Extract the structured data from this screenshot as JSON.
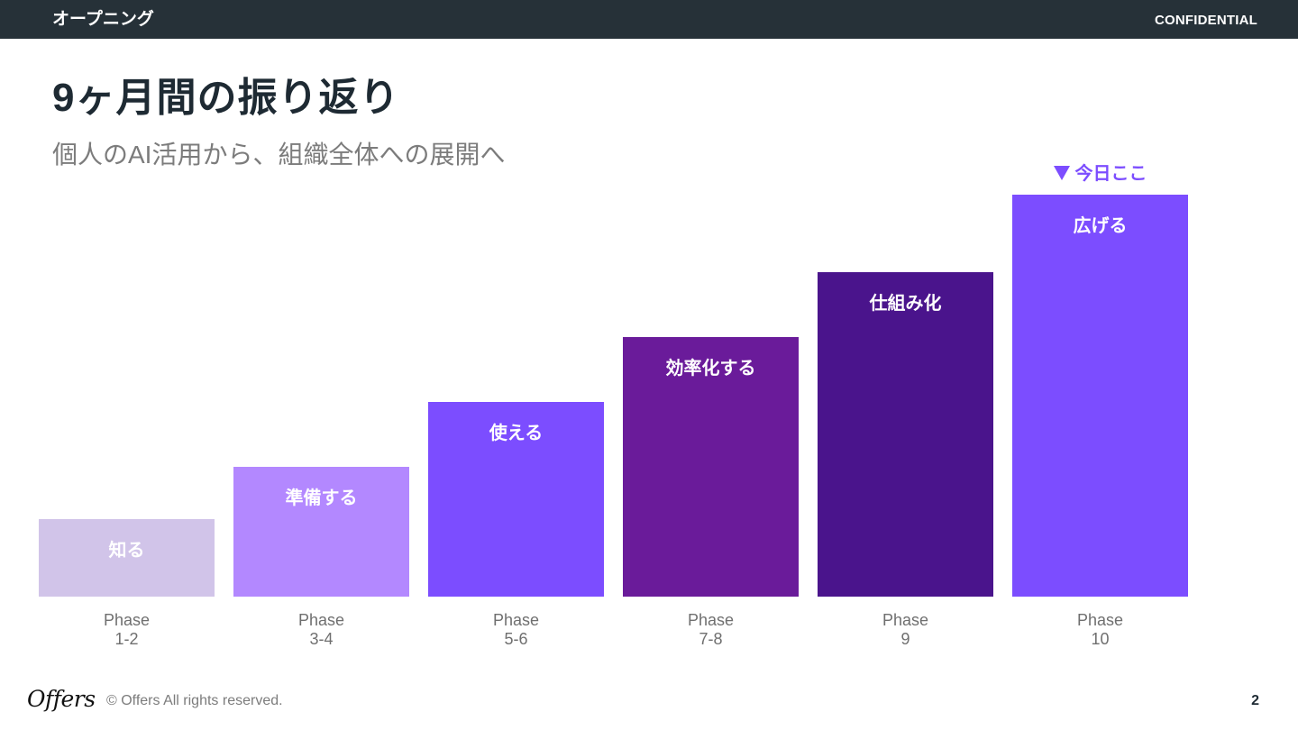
{
  "header": {
    "section": "オープニング",
    "confidential": "CONFIDENTIAL"
  },
  "slide": {
    "title": "9ヶ月間の振り返り",
    "subtitle": "個人のAI活用から、組織全体への展開へ",
    "marker": "今日ここ"
  },
  "steps": [
    {
      "label": "知る",
      "phase_word": "Phase",
      "phase_num": "1-2",
      "color": "#d1c4e9"
    },
    {
      "label": "準備する",
      "phase_word": "Phase",
      "phase_num": "3-4",
      "color": "#b388ff"
    },
    {
      "label": "使える",
      "phase_word": "Phase",
      "phase_num": "5-6",
      "color": "#7c4dff"
    },
    {
      "label": "効率化する",
      "phase_word": "Phase",
      "phase_num": "7-8",
      "color": "#6a1b9a"
    },
    {
      "label": "仕組み化",
      "phase_word": "Phase",
      "phase_num": "9",
      "color": "#4a148c"
    },
    {
      "label": "広げる",
      "phase_word": "Phase",
      "phase_num": "10",
      "color": "#7c4dff"
    }
  ],
  "footer": {
    "logo": "Offers",
    "copyright": "© Offers All rights reserved.",
    "page_number": "2"
  }
}
